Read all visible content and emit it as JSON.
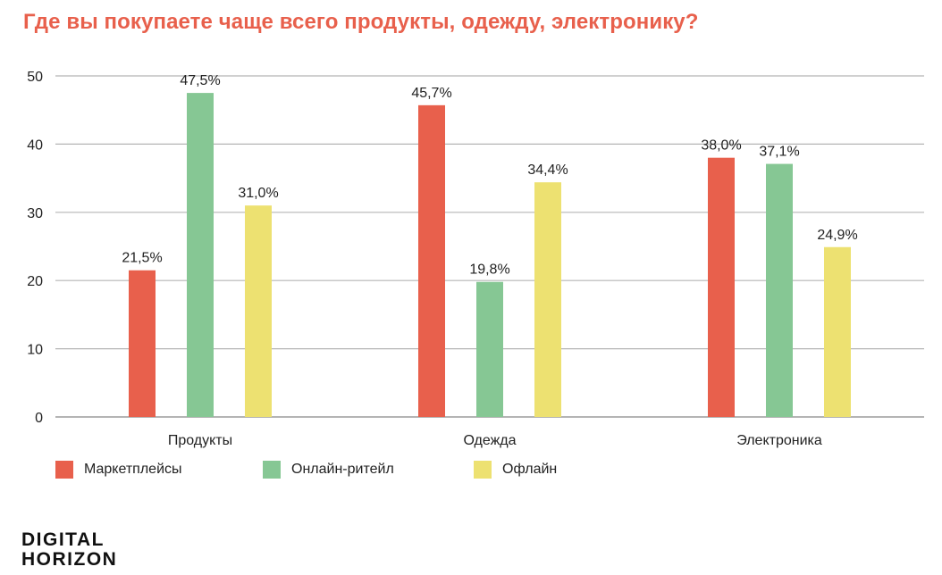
{
  "chart_data": {
    "type": "bar",
    "title": "Где вы покупаете чаще всего продукты, одежду, электронику?",
    "categories": [
      "Продукты",
      "Одежда",
      "Электроника"
    ],
    "series": [
      {
        "name": "Маркетплейсы",
        "color": "#e8604c",
        "values": [
          21.5,
          45.7,
          38.0
        ],
        "labels": [
          "21,5%",
          "45,7%",
          "38,0%"
        ]
      },
      {
        "name": "Онлайн-ритейл",
        "color": "#86c794",
        "values": [
          47.5,
          19.8,
          37.1
        ],
        "labels": [
          "47,5%",
          "19,8%",
          "37,1%"
        ]
      },
      {
        "name": "Офлайн",
        "color": "#ede171",
        "values": [
          31.0,
          34.4,
          24.9
        ],
        "labels": [
          "31,0%",
          "34,4%",
          "24,9%"
        ]
      }
    ],
    "yticks": [
      "0",
      "10",
      "20",
      "30",
      "40",
      "50"
    ],
    "ylim": [
      0,
      50
    ],
    "grid": true,
    "legend_position": "bottom-left"
  },
  "branding": {
    "line1": "DIGITAL",
    "line2": "HORIZON"
  }
}
